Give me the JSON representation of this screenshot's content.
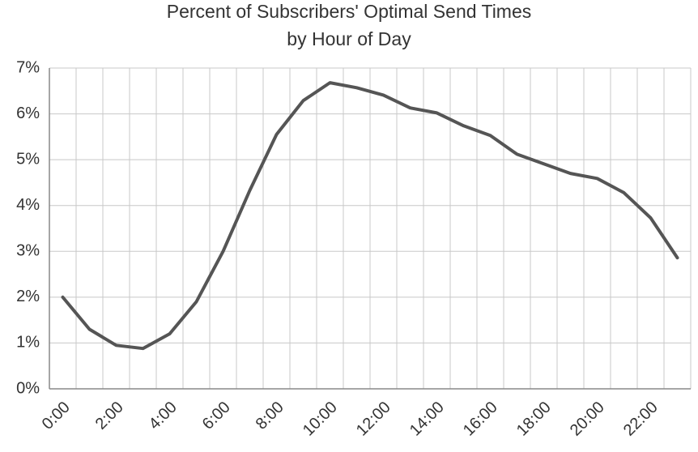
{
  "chart_data": {
    "type": "line",
    "title": [
      "Percent of Subscribers' Optimal Send Times",
      "by Hour of Day"
    ],
    "categories": [
      "0:00",
      null,
      "2:00",
      null,
      "4:00",
      null,
      "6:00",
      null,
      "8:00",
      null,
      "10:00",
      null,
      "12:00",
      null,
      "14:00",
      null,
      "16:00",
      null,
      "18:00",
      null,
      "20:00",
      null,
      "22:00",
      null
    ],
    "values": [
      2.0,
      1.3,
      0.95,
      0.88,
      1.2,
      1.9,
      3.0,
      4.33,
      5.55,
      6.29,
      6.68,
      6.57,
      6.41,
      6.13,
      6.02,
      5.74,
      5.53,
      5.12,
      4.91,
      4.7,
      4.59,
      4.28,
      3.73,
      2.86
    ],
    "color": "#555555",
    "ylim": [
      0,
      7
    ],
    "yticks": [
      {
        "value": 0,
        "label": "0%"
      },
      {
        "value": 1,
        "label": "1%"
      },
      {
        "value": 2,
        "label": "2%"
      },
      {
        "value": 3,
        "label": "3%"
      },
      {
        "value": 4,
        "label": "4%"
      },
      {
        "value": 5,
        "label": "5%"
      },
      {
        "value": 6,
        "label": "6%"
      },
      {
        "value": 7,
        "label": "7%"
      }
    ],
    "grid": true
  }
}
